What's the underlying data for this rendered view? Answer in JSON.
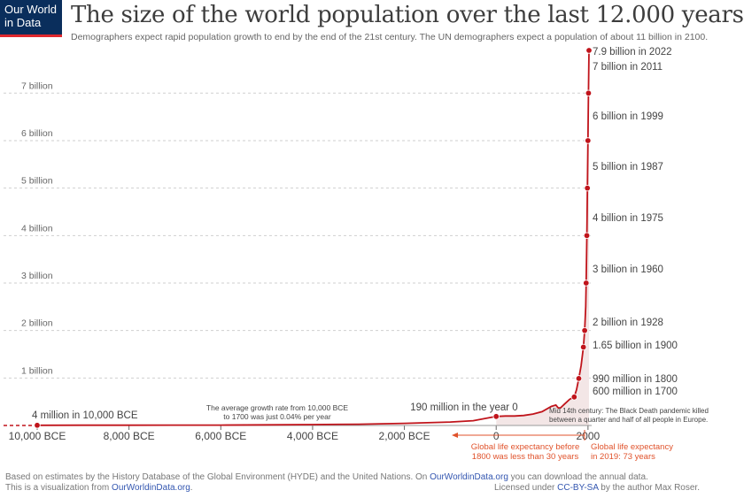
{
  "logo": {
    "line1": "Our World",
    "line2": "in Data"
  },
  "header": {
    "title": "The size of the world population over the last 12.000 years",
    "subtitle": "Demographers expect rapid population growth to end by the end of the 21st century. The UN demographers expect a population of about 11 billion in 2100."
  },
  "colors": {
    "line": "#c0141b",
    "annotation": "#e0522b",
    "logo_bg": "#0a2e5c",
    "logo_bar": "#e0282e"
  },
  "footer": {
    "line1_pre": "Based on estimates by the History Database of the Global Environment (HYDE) and the United Nations. On ",
    "line1_link": "OurWorldinData.org",
    "line1_post": " you can download the annual data.",
    "line2_pre": "This is a visualization from ",
    "line2_link": "OurWorldinData.org",
    "line2_post": ".",
    "license_pre": "Licensed under ",
    "license_link": "CC-BY-SA",
    "license_post": " by the author Max Roser."
  },
  "chart_data": {
    "type": "line",
    "title": "The size of the world population over the last 12.000 years",
    "xlim": [
      -10500,
      2150
    ],
    "ylim": [
      0,
      7.9
    ],
    "x_ticks": [
      {
        "value": -10000,
        "label": "10,000 BCE"
      },
      {
        "value": -8000,
        "label": "8,000 BCE"
      },
      {
        "value": -6000,
        "label": "6,000 BCE"
      },
      {
        "value": -4000,
        "label": "4,000 BCE"
      },
      {
        "value": -2000,
        "label": "2,000 BCE"
      },
      {
        "value": 0,
        "label": "0"
      },
      {
        "value": 2000,
        "label": "2000"
      }
    ],
    "y_ticks": [
      {
        "value": 1,
        "label": "1 billion"
      },
      {
        "value": 2,
        "label": "2 billion"
      },
      {
        "value": 3,
        "label": "3 billion"
      },
      {
        "value": 4,
        "label": "4 billion"
      },
      {
        "value": 5,
        "label": "5 billion"
      },
      {
        "value": 6,
        "label": "6 billion"
      },
      {
        "value": 7,
        "label": "7 billion"
      }
    ],
    "series": [
      {
        "values": [
          [
            -10000,
            0.004
          ],
          [
            -9000,
            0.005
          ],
          [
            -8000,
            0.005
          ],
          [
            -7000,
            0.007
          ],
          [
            -6000,
            0.008
          ],
          [
            -5000,
            0.013
          ],
          [
            -4000,
            0.018
          ],
          [
            -3000,
            0.027
          ],
          [
            -2000,
            0.045
          ],
          [
            -1000,
            0.072
          ],
          [
            -500,
            0.1
          ],
          [
            0,
            0.19
          ],
          [
            200,
            0.2
          ],
          [
            400,
            0.2
          ],
          [
            600,
            0.21
          ],
          [
            800,
            0.24
          ],
          [
            1000,
            0.29
          ],
          [
            1200,
            0.4
          ],
          [
            1300,
            0.43
          ],
          [
            1350,
            0.37
          ],
          [
            1400,
            0.37
          ],
          [
            1500,
            0.46
          ],
          [
            1600,
            0.55
          ],
          [
            1700,
            0.6
          ],
          [
            1750,
            0.75
          ],
          [
            1800,
            0.99
          ],
          [
            1850,
            1.26
          ],
          [
            1900,
            1.65
          ],
          [
            1928,
            2.0
          ],
          [
            1950,
            2.5
          ],
          [
            1960,
            3.0
          ],
          [
            1975,
            4.0
          ],
          [
            1987,
            5.0
          ],
          [
            1999,
            6.0
          ],
          [
            2011,
            7.0
          ],
          [
            2022,
            7.9
          ]
        ]
      }
    ],
    "labeled_points": [
      {
        "x": -10000,
        "y": 0.004,
        "label": "4 million in 10,000 BCE"
      },
      {
        "x": 0,
        "y": 0.19,
        "label": "190 million in the year 0"
      },
      {
        "x": 1700,
        "y": 0.6,
        "label": "600 million in 1700"
      },
      {
        "x": 1800,
        "y": 0.99,
        "label": "990 million in 1800"
      },
      {
        "x": 1900,
        "y": 1.65,
        "label": "1.65 billion in 1900"
      },
      {
        "x": 1928,
        "y": 2.0,
        "label": "2 billion in 1928"
      },
      {
        "x": 1960,
        "y": 3.0,
        "label": "3 billion in 1960"
      },
      {
        "x": 1975,
        "y": 4.0,
        "label": "4 billion in 1975"
      },
      {
        "x": 1987,
        "y": 5.0,
        "label": "5 billion in 1987"
      },
      {
        "x": 1999,
        "y": 6.0,
        "label": "6 billion in 1999"
      },
      {
        "x": 2011,
        "y": 7.0,
        "label": "7 billion in 2011"
      },
      {
        "x": 2022,
        "y": 7.9,
        "label": "7.9 billion in 2022"
      }
    ],
    "annotations": {
      "growth_rate_line1": "The average growth rate from 10,000 BCE",
      "growth_rate_line2": "to 1700 was just  0.04% per year",
      "black_death_line1": "Mid 14th century: The Black Death pandemic killed",
      "black_death_line2": "between a quarter and half of all people in Europe.",
      "life_before_line1": "Global life expectancy before",
      "life_before_line2": "1800 was less than 30 years",
      "life_2019_line1": "Global life expectancy",
      "life_2019_line2": "in 2019: 73 years"
    }
  }
}
